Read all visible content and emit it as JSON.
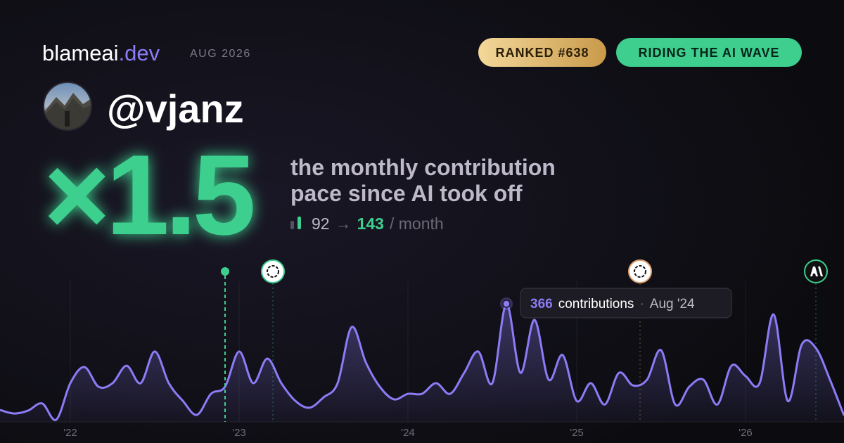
{
  "brand": {
    "name": "blameai",
    "tld": ".dev",
    "period": "AUG 2026"
  },
  "badges": [
    "RANKED #638",
    "RIDING THE AI WAVE"
  ],
  "user": {
    "handle": "@vjanz"
  },
  "headline": {
    "multiplier": "×1.5",
    "tagline": [
      "the monthly contribution",
      "pace since AI took off"
    ]
  },
  "stats": {
    "before": 92,
    "arrow": "→",
    "after": 143,
    "unit": "/ month"
  },
  "chart_data": {
    "type": "line",
    "color": "#8b7cf6",
    "categories": [
      null,
      null,
      null,
      null,
      null,
      "'22",
      null,
      null,
      null,
      null,
      null,
      null,
      null,
      null,
      null,
      null,
      null,
      "'23",
      null,
      null,
      null,
      null,
      null,
      null,
      null,
      null,
      null,
      null,
      null,
      "'24",
      null,
      null,
      null,
      null,
      null,
      null,
      null,
      null,
      null,
      null,
      null,
      "'25",
      null,
      null,
      null,
      null,
      null,
      null,
      null,
      null,
      null,
      null,
      null,
      "'26",
      null,
      null,
      null,
      null,
      null,
      null,
      null
    ],
    "values": [
      37,
      26,
      35,
      57,
      7,
      120,
      170,
      109,
      120,
      174,
      120,
      218,
      120,
      65,
      22,
      87,
      109,
      218,
      120,
      196,
      120,
      65,
      44,
      76,
      120,
      294,
      185,
      109,
      70,
      87,
      87,
      120,
      87,
      152,
      218,
      120,
      366,
      152,
      316,
      131,
      207,
      65,
      120,
      54,
      152,
      113,
      131,
      222,
      54,
      109,
      131,
      54,
      174,
      142,
      120,
      333,
      65,
      240,
      229,
      131,
      20
    ],
    "annotation": {
      "label": "contributions",
      "separator": "·",
      "date": "Aug '24"
    }
  }
}
